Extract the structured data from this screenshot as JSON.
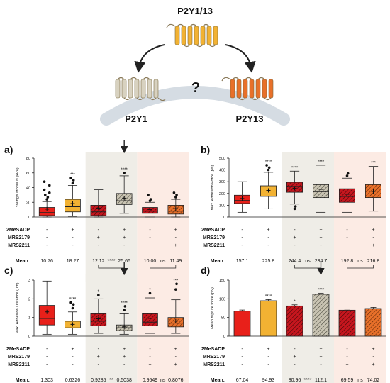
{
  "schematic": {
    "receptor_top": "P2Y1/13",
    "receptor_left": "P2Y1",
    "receptor_right": "P2Y13",
    "question": "?",
    "colors": {
      "top": "#F2B233",
      "left": "#D8D2C0",
      "right": "#E8702A",
      "arc": "#D5DCE3"
    }
  },
  "conditions": {
    "row_labels": [
      "2MeSADP",
      "MRS2179",
      "MRS2211"
    ],
    "rows": [
      [
        "-",
        "+",
        "-",
        "+",
        "-",
        "+"
      ],
      [
        "-",
        "-",
        "+",
        "+",
        "-",
        "-"
      ],
      [
        "-",
        "-",
        "-",
        "-",
        "+",
        "+"
      ]
    ],
    "mean_label": "Mean:",
    "group_colors": {
      "control": "#E8201A",
      "agonist": "#F2B233",
      "mrs2179": "#C6161E",
      "mrs2179_agonist": "#C8C3B2",
      "mrs2211": "#C6161E",
      "mrs2211_agonist": "#E8702A"
    },
    "shade_colors": {
      "p2y1": "#EFEDE7",
      "p2y13": "#FCEBE4"
    }
  },
  "chart_data": [
    {
      "panel": "a)",
      "type": "box",
      "ylabel": "Young's Modulus (kPa)",
      "ylim": [
        0,
        80
      ],
      "ticks": [
        0,
        20,
        40,
        60,
        80
      ],
      "boxes": [
        {
          "q1": 2,
          "median": 6,
          "q3": 13,
          "wlo": 0,
          "whi": 21,
          "mean": 10.76,
          "outliers": [
            24,
            27,
            30,
            33,
            37,
            43,
            48
          ]
        },
        {
          "q1": 7,
          "median": 14,
          "q3": 24,
          "wlo": 1,
          "whi": 43,
          "mean": 18.27,
          "outliers": [
            46,
            50,
            53
          ]
        },
        {
          "q1": 2,
          "median": 7,
          "q3": 16,
          "wlo": 0,
          "whi": 37,
          "mean": 12.12,
          "outliers": []
        },
        {
          "q1": 17,
          "median": 22,
          "q3": 32,
          "wlo": 5,
          "whi": 56,
          "mean": 25.66,
          "outliers": [
            60
          ]
        },
        {
          "q1": 5,
          "median": 8,
          "q3": 13,
          "wlo": 0,
          "whi": 20,
          "mean": 10.0,
          "outliers": [
            22,
            24,
            30
          ]
        },
        {
          "q1": 4,
          "median": 8,
          "q3": 16,
          "wlo": 0,
          "whi": 24,
          "mean": 11.49,
          "outliers": [
            27,
            30,
            33
          ]
        }
      ],
      "sig": [
        "",
        "***",
        "",
        "****",
        "",
        ""
      ],
      "means": [
        "10.76",
        "18.27",
        "12.12",
        "25.66",
        "10.00",
        "11.49"
      ],
      "brackets": [
        [
          "****"
        ],
        [
          "ns"
        ]
      ],
      "arrow_index": 3
    },
    {
      "panel": "b)",
      "type": "box",
      "ylabel": "Max. Adhesion Force (pN)",
      "ylim": [
        0,
        500
      ],
      "ticks": [
        0,
        100,
        200,
        300,
        400,
        500
      ],
      "boxes": [
        {
          "q1": 115,
          "median": 140,
          "q3": 185,
          "wlo": 40,
          "whi": 300,
          "mean": 157.1,
          "outliers": []
        },
        {
          "q1": 175,
          "median": 220,
          "q3": 265,
          "wlo": 70,
          "whi": 380,
          "mean": 225.8,
          "outliers": [
            400,
            420,
            440
          ]
        },
        {
          "q1": 210,
          "median": 260,
          "q3": 295,
          "wlo": 110,
          "whi": 390,
          "mean": 244.4,
          "outliers": [
            70,
            90
          ]
        },
        {
          "q1": 165,
          "median": 215,
          "q3": 275,
          "wlo": 40,
          "whi": 440,
          "mean": 234.7,
          "outliers": []
        },
        {
          "q1": 125,
          "median": 175,
          "q3": 240,
          "wlo": 40,
          "whi": 330,
          "mean": 192.8,
          "outliers": [
            350,
            370
          ]
        },
        {
          "q1": 165,
          "median": 220,
          "q3": 275,
          "wlo": 50,
          "whi": 430,
          "mean": 216.8,
          "outliers": []
        }
      ],
      "sig": [
        "",
        "****",
        "****",
        "****",
        "",
        "***"
      ],
      "means": [
        "157.1",
        "225.8",
        "244.4",
        "234.7",
        "192.8",
        "216.8"
      ],
      "brackets": [
        [
          "ns"
        ],
        [
          "ns"
        ]
      ],
      "arrow_index": -1
    },
    {
      "panel": "c)",
      "type": "box",
      "ylabel": "Max. Adhesion Distance (μm)",
      "ylim": [
        0,
        3
      ],
      "ticks": [
        0,
        1,
        2,
        3
      ],
      "boxes": [
        {
          "q1": 0.6,
          "median": 0.95,
          "q3": 1.65,
          "wlo": 0.1,
          "whi": 2.95,
          "mean": 1.303,
          "outliers": []
        },
        {
          "q1": 0.45,
          "median": 0.55,
          "q3": 0.8,
          "wlo": 0.1,
          "whi": 1.3,
          "mean": 0.6326,
          "outliers": [
            1.5,
            1.7,
            1.8
          ]
        },
        {
          "q1": 0.55,
          "median": 0.8,
          "q3": 1.2,
          "wlo": 0.15,
          "whi": 2.0,
          "mean": 0.9285,
          "outliers": [
            2.2
          ]
        },
        {
          "q1": 0.3,
          "median": 0.45,
          "q3": 0.6,
          "wlo": 0.1,
          "whi": 1.2,
          "mean": 0.5038,
          "outliers": [
            1.4,
            1.6
          ]
        },
        {
          "q1": 0.55,
          "median": 0.75,
          "q3": 1.2,
          "wlo": 0.15,
          "whi": 2.05,
          "mean": 0.9549,
          "outliers": [
            2.3
          ]
        },
        {
          "q1": 0.5,
          "median": 0.7,
          "q3": 1.0,
          "wlo": 0.15,
          "whi": 1.95,
          "mean": 0.8076,
          "outliers": [
            2.5,
            2.8
          ]
        }
      ],
      "sig": [
        "",
        "****",
        "*",
        "****",
        "*",
        "***"
      ],
      "means": [
        "1.303",
        "0.6326",
        "0.9285",
        "0.5038",
        "0.9549",
        "0.8076"
      ],
      "brackets": [
        [
          "**"
        ],
        [
          "ns"
        ]
      ],
      "arrow_index": 3
    },
    {
      "panel": "d)",
      "type": "bar",
      "ylabel": "Mean rupture force (pN)",
      "ylim": [
        0,
        150
      ],
      "ticks": [
        0,
        50,
        100,
        150
      ],
      "values": [
        67.04,
        94.93,
        80.96,
        112.1,
        69.59,
        74.02
      ],
      "errors": [
        3,
        3,
        3,
        3,
        3,
        3
      ],
      "sig": [
        "",
        "****",
        "*",
        "****",
        "",
        ""
      ],
      "means": [
        "67.04",
        "94.93",
        "80.96",
        "112.1",
        "69.59",
        "74.02"
      ],
      "brackets": [
        [
          "****"
        ],
        [
          "ns"
        ]
      ],
      "arrow_index": 3
    }
  ]
}
